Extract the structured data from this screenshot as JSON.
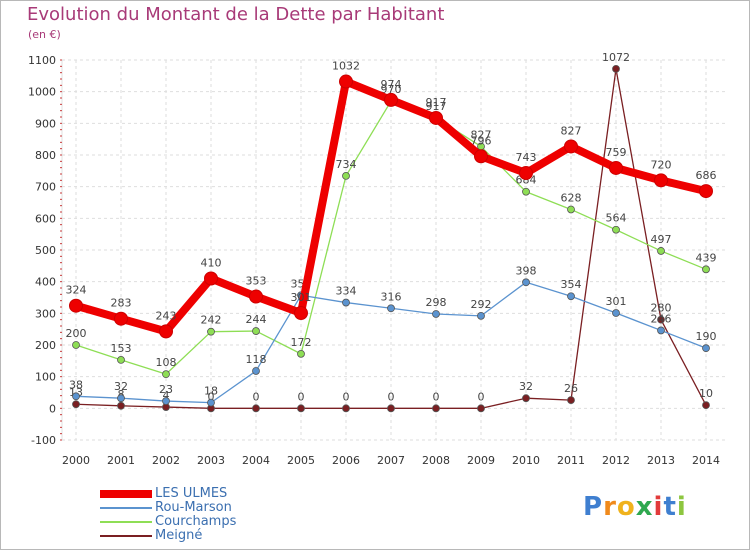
{
  "chart_data": {
    "type": "line",
    "title": "Evolution du Montant de la Dette par Habitant",
    "subtitle": "(en €)",
    "x": [
      "2000",
      "2001",
      "2002",
      "2003",
      "2004",
      "2005",
      "2006",
      "2007",
      "2008",
      "2009",
      "2010",
      "2011",
      "2012",
      "2013",
      "2014"
    ],
    "ylim": [
      -100,
      1100
    ],
    "yticks": [
      -100,
      0,
      100,
      200,
      300,
      400,
      500,
      600,
      700,
      800,
      900,
      1000,
      1100
    ],
    "grid": true,
    "legend_position": "bottom-left",
    "series": [
      {
        "name": "LES ULMES",
        "color": "#ee0000",
        "values": [
          324,
          283,
          243,
          410,
          353,
          301,
          1032,
          974,
          917,
          796,
          743,
          827,
          759,
          720,
          686
        ]
      },
      {
        "name": "Rou-Marson",
        "color": "#5b93cf",
        "values": [
          38,
          32,
          23,
          18,
          118,
          357,
          334,
          316,
          298,
          292,
          398,
          354,
          301,
          246,
          190
        ]
      },
      {
        "name": "Courchamps",
        "color": "#8ede55",
        "values": [
          200,
          153,
          108,
          242,
          244,
          172,
          734,
          970,
          917,
          827,
          684,
          628,
          564,
          497,
          439
        ]
      },
      {
        "name": "Meigné",
        "color": "#7a1f22",
        "values": [
          13,
          8,
          4,
          0,
          0,
          0,
          0,
          0,
          0,
          0,
          32,
          26,
          1072,
          280,
          10
        ]
      }
    ]
  },
  "brand": {
    "letters": [
      {
        "ch": "P",
        "color": "#3f7fd0"
      },
      {
        "ch": "r",
        "color": "#f08a1c"
      },
      {
        "ch": "o",
        "color": "#f0b21c"
      },
      {
        "ch": "x",
        "color": "#2fa84f"
      },
      {
        "ch": "i",
        "color": "#e23b3b"
      },
      {
        "ch": "t",
        "color": "#3f7fd0"
      },
      {
        "ch": "i",
        "color": "#8dc63f"
      }
    ]
  }
}
